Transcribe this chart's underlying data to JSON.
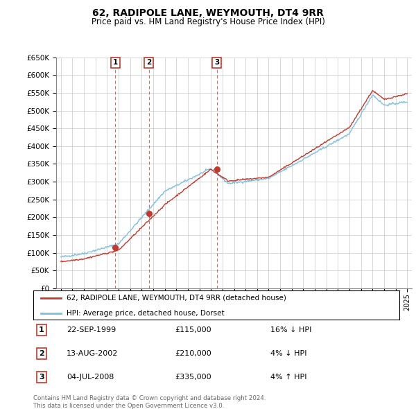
{
  "title": "62, RADIPOLE LANE, WEYMOUTH, DT4 9RR",
  "subtitle": "Price paid vs. HM Land Registry's House Price Index (HPI)",
  "legend_line1": "62, RADIPOLE LANE, WEYMOUTH, DT4 9RR (detached house)",
  "legend_line2": "HPI: Average price, detached house, Dorset",
  "footer1": "Contains HM Land Registry data © Crown copyright and database right 2024.",
  "footer2": "This data is licensed under the Open Government Licence v3.0.",
  "transactions": [
    {
      "num": 1,
      "date": "22-SEP-1999",
      "price": "£115,000",
      "hpi": "16% ↓ HPI",
      "year": 1999.72
    },
    {
      "num": 2,
      "date": "13-AUG-2002",
      "price": "£210,000",
      "hpi": "4% ↓ HPI",
      "year": 2002.62
    },
    {
      "num": 3,
      "date": "04-JUL-2008",
      "price": "£335,000",
      "hpi": "4% ↑ HPI",
      "year": 2008.5
    }
  ],
  "transaction_values": [
    115000,
    210000,
    335000
  ],
  "hpi_color": "#7fbfdf",
  "price_color": "#c0392b",
  "vline_color": "#c0392b",
  "background_color": "#ffffff",
  "grid_color": "#c8c8c8",
  "ylim": [
    0,
    650000
  ],
  "xlim_start": 1994.6,
  "xlim_end": 2025.4,
  "yticks": [
    0,
    50000,
    100000,
    150000,
    200000,
    250000,
    300000,
    350000,
    400000,
    450000,
    500000,
    550000,
    600000,
    650000
  ],
  "xticks": [
    1995,
    1996,
    1997,
    1998,
    1999,
    2000,
    2001,
    2002,
    2003,
    2004,
    2005,
    2006,
    2007,
    2008,
    2009,
    2010,
    2011,
    2012,
    2013,
    2014,
    2015,
    2016,
    2017,
    2018,
    2019,
    2020,
    2021,
    2022,
    2023,
    2024,
    2025
  ]
}
